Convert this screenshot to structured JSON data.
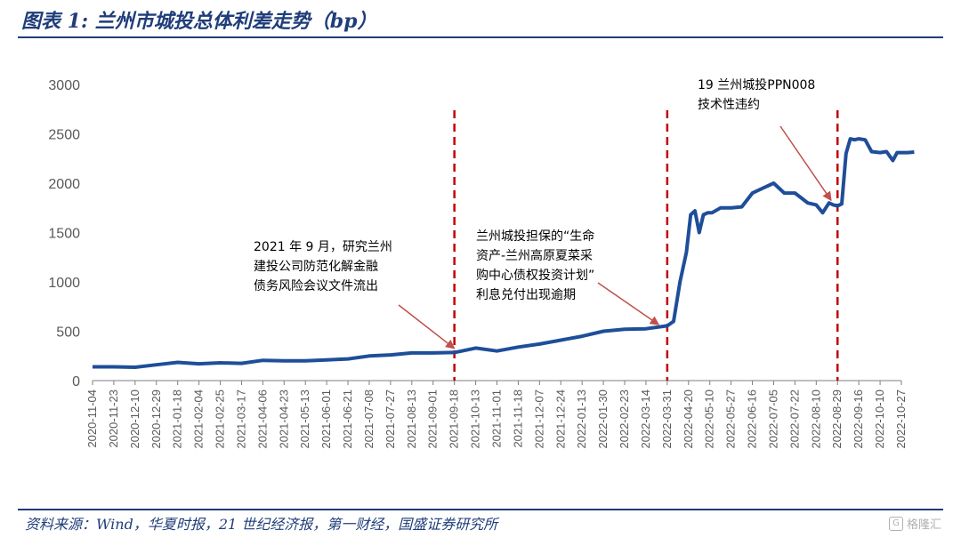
{
  "header": {
    "title": "图表 1:  兰州市城投总体利差走势（bp）"
  },
  "footer": {
    "source": "资料来源：Wind，华夏时报，21 世纪经济报，第一财经，国盛证券研究所",
    "watermark": "格隆汇"
  },
  "chart_data": {
    "type": "line",
    "title": "图表 1:  兰州市城投总体利差走势（bp）",
    "xlabel": "",
    "ylabel": "",
    "ylim": [
      0,
      3000
    ],
    "yticks": [
      0,
      500,
      1000,
      1500,
      2000,
      2500,
      3000
    ],
    "grid": false,
    "legend": "none",
    "line_color": "#1f4e99",
    "x_tick_labels": [
      "2020-11-04",
      "2020-11-23",
      "2020-12-10",
      "2020-12-29",
      "2021-01-18",
      "2021-02-04",
      "2021-02-25",
      "2021-03-17",
      "2021-04-06",
      "2021-04-23",
      "2021-05-13",
      "2021-06-01",
      "2021-06-21",
      "2021-07-08",
      "2021-07-27",
      "2021-08-13",
      "2021-09-01",
      "2021-09-18",
      "2021-10-13",
      "2021-11-01",
      "2021-11-18",
      "2021-12-07",
      "2021-12-24",
      "2022-01-13",
      "2022-01-30",
      "2022-02-23",
      "2022-03-14",
      "2022-03-31",
      "2022-04-20",
      "2022-05-10",
      "2022-05-27",
      "2022-06-16",
      "2022-07-05",
      "2022-07-22",
      "2022-08-10",
      "2022-08-29",
      "2022-09-16",
      "2022-10-10",
      "2022-10-27"
    ],
    "series": [
      {
        "x": [
          0,
          1,
          2,
          3,
          4,
          5,
          6,
          7,
          8,
          9,
          10,
          11,
          12,
          13,
          14,
          15,
          16,
          17,
          18,
          19,
          20,
          21,
          22,
          23,
          24,
          25,
          26,
          27,
          27.3,
          27.6,
          27.9,
          28.1,
          28.3,
          28.5,
          28.7,
          28.9,
          29.1,
          29.5,
          30,
          30.5,
          31,
          31.5,
          32,
          32.5,
          33,
          33.3,
          33.6,
          34,
          34.3,
          34.6,
          34.8,
          35,
          35.2,
          35.4,
          35.6,
          35.8,
          36,
          36.3,
          36.6,
          37,
          37.3,
          37.6,
          37.8,
          38,
          38.3,
          38.6
        ],
        "y": [
          140,
          140,
          135,
          160,
          185,
          170,
          180,
          175,
          205,
          200,
          200,
          210,
          220,
          250,
          260,
          280,
          280,
          285,
          330,
          300,
          340,
          370,
          410,
          450,
          500,
          520,
          525,
          555,
          600,
          1000,
          1300,
          1680,
          1720,
          1500,
          1680,
          1700,
          1700,
          1750,
          1750,
          1760,
          1900,
          1950,
          2000,
          1900,
          1900,
          1850,
          1800,
          1780,
          1700,
          1800,
          1780,
          1770,
          1790,
          2300,
          2450,
          2440,
          2450,
          2440,
          2320,
          2310,
          2320,
          2230,
          2310,
          2310,
          2310,
          2315
        ]
      }
    ],
    "events": [
      {
        "x": 17.0,
        "label": [
          "2021 年 9 月，研究兰州",
          "建投公司防范化解金融",
          "债务风险会议文件流出"
        ],
        "arrow_target": [
          17.0,
          290
        ]
      },
      {
        "x": 27.0,
        "label": [
          "兰州城投担保的“生命",
          "资产-兰州高原夏菜采",
          "购中心债权投资计划”",
          "利息兑付出现逾期"
        ],
        "arrow_target": [
          26.6,
          530
        ]
      },
      {
        "x": 35.0,
        "label": [
          "19 兰州城投PPN008",
          "技术性违约"
        ],
        "arrow_target": [
          34.7,
          1790
        ]
      }
    ]
  }
}
